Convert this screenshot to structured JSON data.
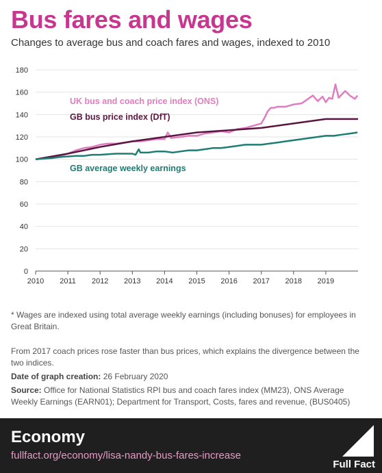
{
  "header": {
    "title": "Bus fares and wages",
    "subtitle": "Changes to average bus and coach fares and wages, indexed to 2010"
  },
  "chart_data": {
    "type": "line",
    "ylim": [
      0,
      180
    ],
    "yticks": [
      0,
      20,
      40,
      60,
      80,
      100,
      120,
      140,
      160,
      180
    ],
    "xlim": [
      2010,
      2020
    ],
    "xticks": [
      2010,
      2011,
      2012,
      2013,
      2014,
      2015,
      2016,
      2017,
      2018,
      2019
    ],
    "grid": true,
    "series": [
      {
        "name": "UK bus and coach price index (ONS)",
        "color": "#e07cc0",
        "x": [
          2010.0,
          2010.25,
          2010.5,
          2010.75,
          2011.0,
          2011.25,
          2011.5,
          2011.75,
          2012.0,
          2012.25,
          2012.5,
          2012.75,
          2013.0,
          2013.25,
          2013.5,
          2013.75,
          2014.0,
          2014.1,
          2014.2,
          2014.5,
          2014.75,
          2015.0,
          2015.25,
          2015.5,
          2015.75,
          2016.0,
          2016.25,
          2016.5,
          2016.75,
          2017.0,
          2017.1,
          2017.2,
          2017.3,
          2017.4,
          2017.5,
          2017.75,
          2018.0,
          2018.25,
          2018.5,
          2018.6,
          2018.75,
          2018.9,
          2019.0,
          2019.1,
          2019.2,
          2019.3,
          2019.4,
          2019.5,
          2019.6,
          2019.75,
          2019.9,
          2019.98
        ],
        "values": [
          100,
          101,
          102,
          103,
          105,
          108,
          110,
          111,
          113,
          114,
          114,
          115,
          116,
          116,
          117,
          118,
          118,
          124,
          119,
          120,
          121,
          121,
          123,
          124,
          125,
          124,
          127,
          128,
          130,
          132,
          137,
          143,
          146,
          146,
          147,
          147,
          149,
          150,
          155,
          157,
          152,
          156,
          151,
          155,
          154,
          167,
          155,
          158,
          161,
          157,
          154,
          157
        ]
      },
      {
        "name": "GB bus price index (DfT)",
        "color": "#5a1540",
        "x": [
          2010,
          2011,
          2012,
          2013,
          2014,
          2015,
          2016,
          2017,
          2018,
          2019,
          2020
        ],
        "values": [
          100,
          105,
          111,
          116,
          120,
          124,
          126,
          128,
          132,
          136,
          136
        ]
      },
      {
        "name": "GB average weekly earnings",
        "color": "#1e7d73",
        "x": [
          2010.0,
          2010.25,
          2010.5,
          2010.75,
          2011.0,
          2011.25,
          2011.5,
          2011.75,
          2012.0,
          2012.25,
          2012.5,
          2012.75,
          2013.0,
          2013.1,
          2013.2,
          2013.25,
          2013.5,
          2013.75,
          2014.0,
          2014.25,
          2014.5,
          2014.75,
          2015.0,
          2015.25,
          2015.5,
          2015.75,
          2016.0,
          2016.25,
          2016.5,
          2016.75,
          2017.0,
          2017.25,
          2017.5,
          2017.75,
          2018.0,
          2018.25,
          2018.5,
          2018.75,
          2019.0,
          2019.25,
          2019.5,
          2019.75,
          2019.98
        ],
        "values": [
          100,
          100.5,
          101,
          102,
          102.5,
          103,
          103,
          104,
          104,
          104.5,
          105,
          105,
          105,
          104,
          109,
          106,
          106,
          107,
          107,
          106,
          107,
          108,
          108,
          109,
          110,
          110,
          111,
          112,
          113,
          113,
          113,
          114,
          115,
          116,
          117,
          118,
          119,
          120,
          121,
          121,
          122,
          123,
          124
        ]
      }
    ],
    "labels": [
      {
        "series": 0,
        "text": "UK bus and coach price index (ONS)"
      },
      {
        "series": 1,
        "text": "GB bus price index (DfT)"
      },
      {
        "series": 2,
        "text": "GB average weekly earnings"
      }
    ]
  },
  "notes": {
    "wages_note": "* Wages are indexed using total average weekly earnings (including bonuses) for employees in Great Britain.",
    "coach_note": "From 2017 coach prices rose faster than bus prices, which explains the divergence between the two indices.",
    "date_label": "Date of graph creation:",
    "date_value": "26 February 2020",
    "source_label": "Source:",
    "source_value": "Office for National Statistics RPI bus and coach fares index (MM23), ONS Average Weekly Earnings (EARN01); Department for Transport, Costs, fares and revenue, (BUS0405)"
  },
  "footer": {
    "section": "Economy",
    "url": "fullfact.org/economy/lisa-nandy-bus-fares-increase",
    "brand": "Full Fact",
    "background": "#1f1f1f",
    "url_color": "#e89ac8"
  }
}
